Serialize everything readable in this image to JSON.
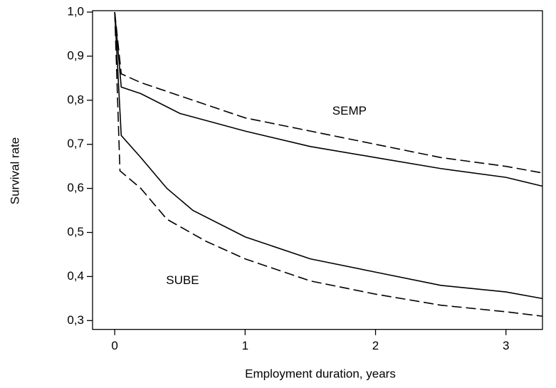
{
  "chart_data": {
    "type": "line",
    "xlabel": "Employment duration, years",
    "ylabel": "Survival rate",
    "xlim": [
      -0.17,
      3.28
    ],
    "ylim": [
      0.28,
      1.0
    ],
    "xticks": [
      0,
      1,
      2,
      3
    ],
    "yticks": [
      {
        "value": 0.3,
        "label": "0,3"
      },
      {
        "value": 0.4,
        "label": "0,4"
      },
      {
        "value": 0.5,
        "label": "0,5"
      },
      {
        "value": 0.6,
        "label": "0,6"
      },
      {
        "value": 0.7,
        "label": "0,7"
      },
      {
        "value": 0.8,
        "label": "0,8"
      },
      {
        "value": 0.9,
        "label": "0,9"
      },
      {
        "value": 1.0,
        "label": "1,0"
      }
    ],
    "series": [
      {
        "color": "#000000",
        "dashed": false,
        "x": [
          0,
          0.05,
          0.2,
          0.5,
          1,
          1.5,
          2,
          2.5,
          3,
          3.28
        ],
        "values": [
          1.0,
          0.83,
          0.815,
          0.77,
          0.73,
          0.695,
          0.67,
          0.645,
          0.625,
          0.605
        ]
      },
      {
        "color": "#000000",
        "dashed": true,
        "x": [
          0,
          0.05,
          0.2,
          0.5,
          1,
          1.5,
          2,
          2.5,
          3,
          3.28
        ],
        "values": [
          1.0,
          0.86,
          0.84,
          0.81,
          0.76,
          0.73,
          0.7,
          0.67,
          0.65,
          0.635
        ]
      },
      {
        "color": "#000000",
        "dashed": false,
        "x": [
          0,
          0.05,
          0.2,
          0.4,
          0.6,
          1,
          1.5,
          2,
          2.5,
          3,
          3.28
        ],
        "values": [
          1.0,
          0.72,
          0.67,
          0.6,
          0.55,
          0.49,
          0.44,
          0.41,
          0.38,
          0.365,
          0.35
        ]
      },
      {
        "color": "#000000",
        "dashed": true,
        "x": [
          0,
          0.04,
          0.2,
          0.4,
          0.7,
          1,
          1.5,
          2,
          2.5,
          3,
          3.28
        ],
        "values": [
          1.0,
          0.64,
          0.6,
          0.53,
          0.48,
          0.44,
          0.39,
          0.36,
          0.335,
          0.32,
          0.31
        ]
      }
    ],
    "annotations": [
      {
        "text": "SEMP",
        "x": 1.8,
        "y": 0.775
      },
      {
        "text": "SUBE",
        "x": 0.52,
        "y": 0.39
      }
    ]
  }
}
